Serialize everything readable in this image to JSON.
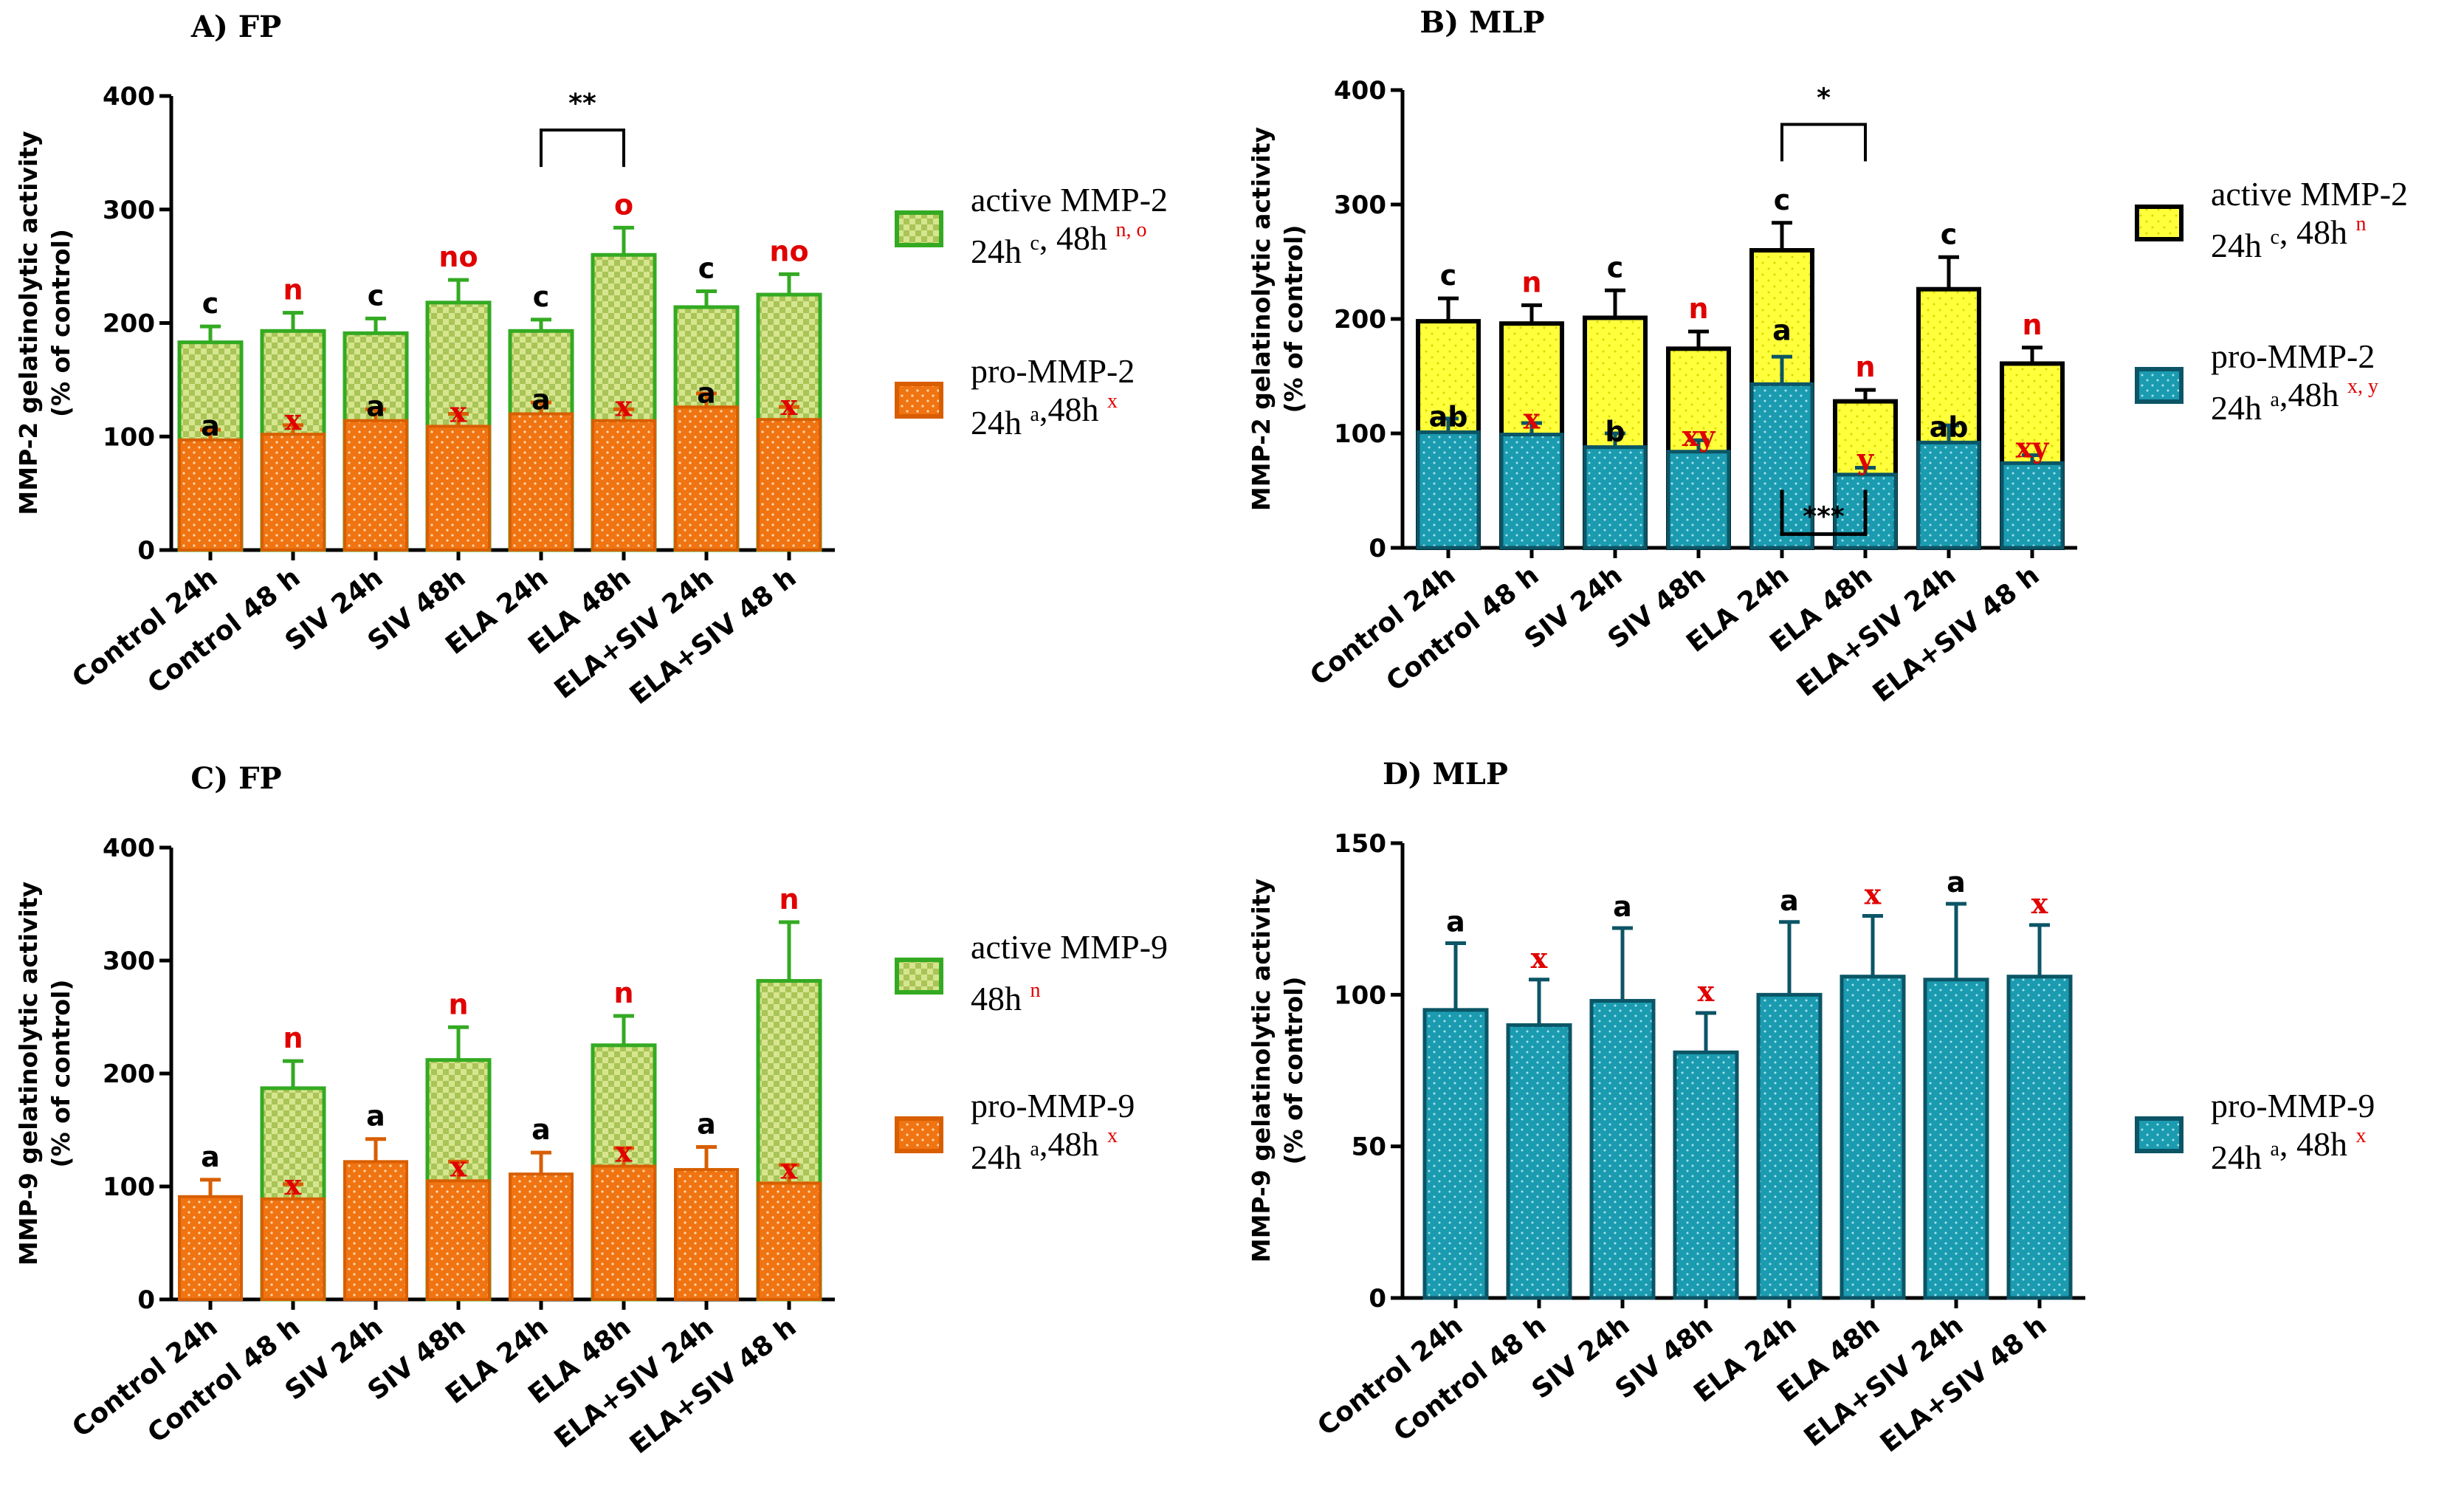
{
  "colors": {
    "green_fill": "#c2d86a",
    "green_edge": "#33aa22",
    "orange_fill": "#f07412",
    "orange_edge": "#d85e00",
    "yellow_fill": "#ffff3c",
    "teal_fill": "#1b9bb0",
    "teal_edge": "#0b5566",
    "black": "#000000",
    "red": "#e00000"
  },
  "chart_data": [
    {
      "id": "A",
      "title": "A) FP",
      "type": "bar",
      "stacked": true,
      "ylabel_line1": "MMP-2 gelatinolytic activity",
      "ylabel_line2": "(% of control)",
      "ylim": [
        0,
        400
      ],
      "yticks": [
        "0",
        "100",
        "200",
        "300",
        "400"
      ],
      "categories": [
        "Control 24h",
        "Control 48 h",
        "SIV 24h",
        "SIV 48h",
        "ELA 24h",
        "ELA 48h",
        "ELA+SIV 24h",
        "ELA+SIV 48 h"
      ],
      "series": [
        {
          "name": "pro-MMP-2",
          "style": "orange",
          "values": [
            97,
            102,
            114,
            109,
            120,
            114,
            126,
            115
          ],
          "errors": [
            9,
            8,
            10,
            11,
            10,
            10,
            12,
            11
          ],
          "labels": [
            "a",
            "x",
            "a",
            "x",
            "a",
            "x",
            "a",
            "x"
          ]
        },
        {
          "name": "active MMP-2",
          "style": "green",
          "values": [
            183,
            193,
            191,
            218,
            193,
            260,
            214,
            225
          ],
          "errors": [
            14,
            16,
            13,
            20,
            10,
            24,
            14,
            18
          ],
          "labels": [
            "c",
            "n",
            "c",
            "no",
            "c",
            "o",
            "c",
            "no"
          ]
        }
      ],
      "sig_brackets": [
        {
          "from": 4,
          "to": 5,
          "text": "**",
          "pos": "top",
          "y": 370
        }
      ],
      "legend": [
        {
          "style": "green",
          "line1": "active MMP-2",
          "line2_black": "24h ",
          "sup_black": "c",
          "line2_black2": ", 48h ",
          "sup_red": "n, o"
        },
        {
          "style": "orange",
          "line1": "pro-MMP-2",
          "line2_black": "24h ",
          "sup_black": "a",
          "line2_black2": ",48h ",
          "sup_red": "x"
        }
      ]
    },
    {
      "id": "B",
      "title": "B) MLP",
      "type": "bar",
      "stacked": true,
      "ylabel_line1": "MMP-2 gelatinolytic activity",
      "ylabel_line2": "(% of control)",
      "ylim": [
        0,
        400
      ],
      "yticks": [
        "0",
        "100",
        "200",
        "300",
        "400"
      ],
      "categories": [
        "Control 24h",
        "Control 48 h",
        "SIV 24h",
        "SIV 48h",
        "ELA 24h",
        "ELA 48h",
        "ELA+SIV 24h",
        "ELA+SIV 48 h"
      ],
      "series": [
        {
          "name": "pro-MMP-2",
          "style": "teal",
          "values": [
            101,
            99,
            88,
            84,
            143,
            64,
            92,
            74
          ],
          "errors": [
            12,
            10,
            12,
            10,
            24,
            6,
            15,
            7
          ],
          "labels": [
            "ab",
            "x",
            "b",
            "xy",
            "a",
            "y",
            "ab",
            "xy"
          ]
        },
        {
          "name": "active MMP-2",
          "style": "yellow",
          "values": [
            198,
            196,
            201,
            174,
            260,
            128,
            226,
            161
          ],
          "errors": [
            20,
            16,
            24,
            15,
            24,
            10,
            28,
            14
          ],
          "labels": [
            "c",
            "n",
            "c",
            "n",
            "c",
            "n",
            "c",
            "n"
          ]
        }
      ],
      "sig_brackets": [
        {
          "from": 4,
          "to": 5,
          "text": "*",
          "pos": "top",
          "y": 370
        },
        {
          "from": 4,
          "to": 5,
          "text": "***",
          "pos": "bottom",
          "y": 12
        }
      ],
      "legend": [
        {
          "style": "yellow",
          "line1": "active MMP-2",
          "line2_black": "24h ",
          "sup_black": "c",
          "line2_black2": ", 48h ",
          "sup_red": "n"
        },
        {
          "style": "teal",
          "line1": "pro-MMP-2",
          "line2_black": "24h ",
          "sup_black": "a",
          "line2_black2": ",48h ",
          "sup_red": "x, y"
        }
      ]
    },
    {
      "id": "C",
      "title": "C) FP",
      "type": "bar",
      "stacked": true,
      "ylabel_line1": "MMP-9 gelatinolytic activity",
      "ylabel_line2": "(% of control)",
      "ylim": [
        0,
        400
      ],
      "yticks": [
        "0",
        "100",
        "200",
        "300",
        "400"
      ],
      "categories": [
        "Control 24h",
        "Control 48 h",
        "SIV 24h",
        "SIV 48h",
        "ELA 24h",
        "ELA 48h",
        "ELA+SIV 24h",
        "ELA+SIV 48 h"
      ],
      "series": [
        {
          "name": "pro-MMP-9",
          "style": "orange",
          "values": [
            91,
            89,
            122,
            105,
            111,
            118,
            115,
            103
          ],
          "errors": [
            15,
            13,
            20,
            17,
            19,
            16,
            20,
            16
          ],
          "labels": [
            "a",
            "x",
            "a",
            "x",
            "a",
            "x",
            "a",
            "x"
          ],
          "label_pos": [
            "top",
            "inside",
            "top",
            "inside",
            "top",
            "inside",
            "top",
            "inside"
          ]
        },
        {
          "name": "active MMP-9",
          "style": "green",
          "values": [
            null,
            187,
            null,
            212,
            null,
            225,
            null,
            282
          ],
          "errors": [
            0,
            24,
            0,
            29,
            0,
            26,
            0,
            52
          ],
          "labels": [
            "",
            "n",
            "",
            "n",
            "",
            "n",
            "",
            "n"
          ]
        }
      ],
      "sig_brackets": [],
      "legend": [
        {
          "style": "green",
          "line1": "active MMP-9",
          "line2_black": "48h ",
          "sup_black": "",
          "line2_black2": "",
          "sup_red": "n"
        },
        {
          "style": "orange",
          "line1": "pro-MMP-9",
          "line2_black": "24h ",
          "sup_black": "a",
          "line2_black2": ",48h ",
          "sup_red": "x"
        }
      ]
    },
    {
      "id": "D",
      "title": "D) MLP",
      "type": "bar",
      "stacked": false,
      "ylabel_line1": "MMP-9 gelatinolytic activity",
      "ylabel_line2": "(% of control)",
      "ylim": [
        0,
        150
      ],
      "yticks": [
        "0",
        "50",
        "100",
        "150"
      ],
      "categories": [
        "Control 24h",
        "Control 48 h",
        "SIV 24h",
        "SIV 48h",
        "ELA 24h",
        "ELA 48h",
        "ELA+SIV 24h",
        "ELA+SIV 48 h"
      ],
      "series": [
        {
          "name": "pro-MMP-9",
          "style": "teal",
          "values": [
            95,
            90,
            98,
            81,
            100,
            106,
            105,
            106
          ],
          "errors": [
            22,
            15,
            24,
            13,
            24,
            20,
            25,
            17
          ],
          "labels": [
            "a",
            "x",
            "a",
            "x",
            "a",
            "x",
            "a",
            "x"
          ]
        }
      ],
      "sig_brackets": [],
      "legend": [
        {
          "style": "teal",
          "line1": "pro-MMP-9",
          "line2_black": "24h ",
          "sup_black": "a",
          "line2_black2": ", 48h ",
          "sup_red": "x"
        }
      ]
    }
  ]
}
